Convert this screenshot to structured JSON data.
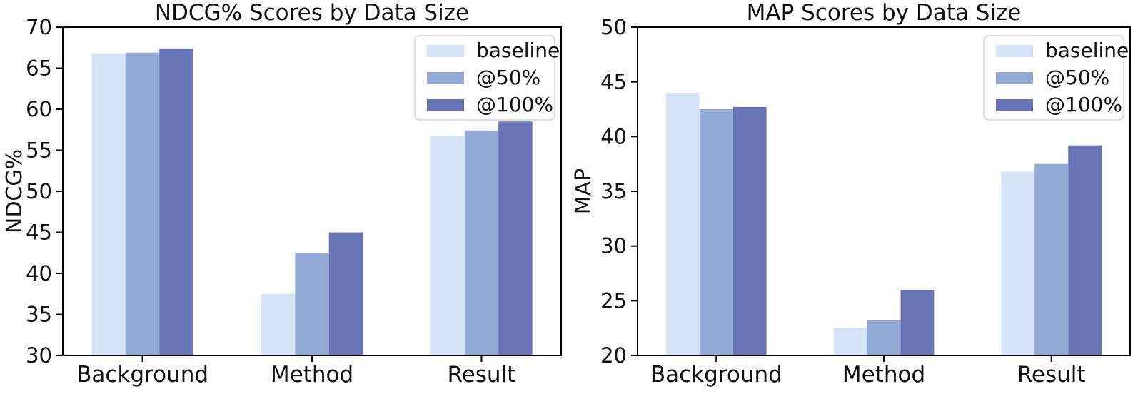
{
  "figure": {
    "background": "#ffffff",
    "text_color": "#111111",
    "spine_color": "#000000",
    "legend_border_color": "#d3d3d3"
  },
  "chart_data": [
    {
      "type": "bar",
      "title": "NDCG% Scores by Data Size",
      "xlabel": "",
      "ylabel": "NDCG%",
      "categories": [
        "Background",
        "Method",
        "Result"
      ],
      "series": [
        {
          "name": "baseline",
          "color": "#d6e4f8",
          "values": [
            66.8,
            37.5,
            56.7
          ]
        },
        {
          "name": "@50%",
          "color": "#93a9d6",
          "values": [
            66.9,
            42.5,
            57.4
          ]
        },
        {
          "name": "@100%",
          "color": "#6974b6",
          "values": [
            67.4,
            45.0,
            58.5
          ]
        }
      ],
      "ylim": [
        30,
        70
      ],
      "ytick_step": 5,
      "ytick_labels": [
        "30",
        "35",
        "40",
        "45",
        "50",
        "55",
        "60",
        "65",
        "70"
      ],
      "grid": false,
      "legend_position": "upper right"
    },
    {
      "type": "bar",
      "title": "MAP Scores by Data Size",
      "xlabel": "",
      "ylabel": "MAP",
      "categories": [
        "Background",
        "Method",
        "Result"
      ],
      "series": [
        {
          "name": "baseline",
          "color": "#d6e4f8",
          "values": [
            44.0,
            22.5,
            36.8
          ]
        },
        {
          "name": "@50%",
          "color": "#93a9d6",
          "values": [
            42.5,
            23.2,
            37.5
          ]
        },
        {
          "name": "@100%",
          "color": "#6974b6",
          "values": [
            42.7,
            26.0,
            39.2
          ]
        }
      ],
      "ylim": [
        20,
        50
      ],
      "ytick_step": 5,
      "ytick_labels": [
        "20",
        "25",
        "30",
        "35",
        "40",
        "45",
        "50"
      ],
      "grid": false,
      "legend_position": "upper right"
    }
  ]
}
